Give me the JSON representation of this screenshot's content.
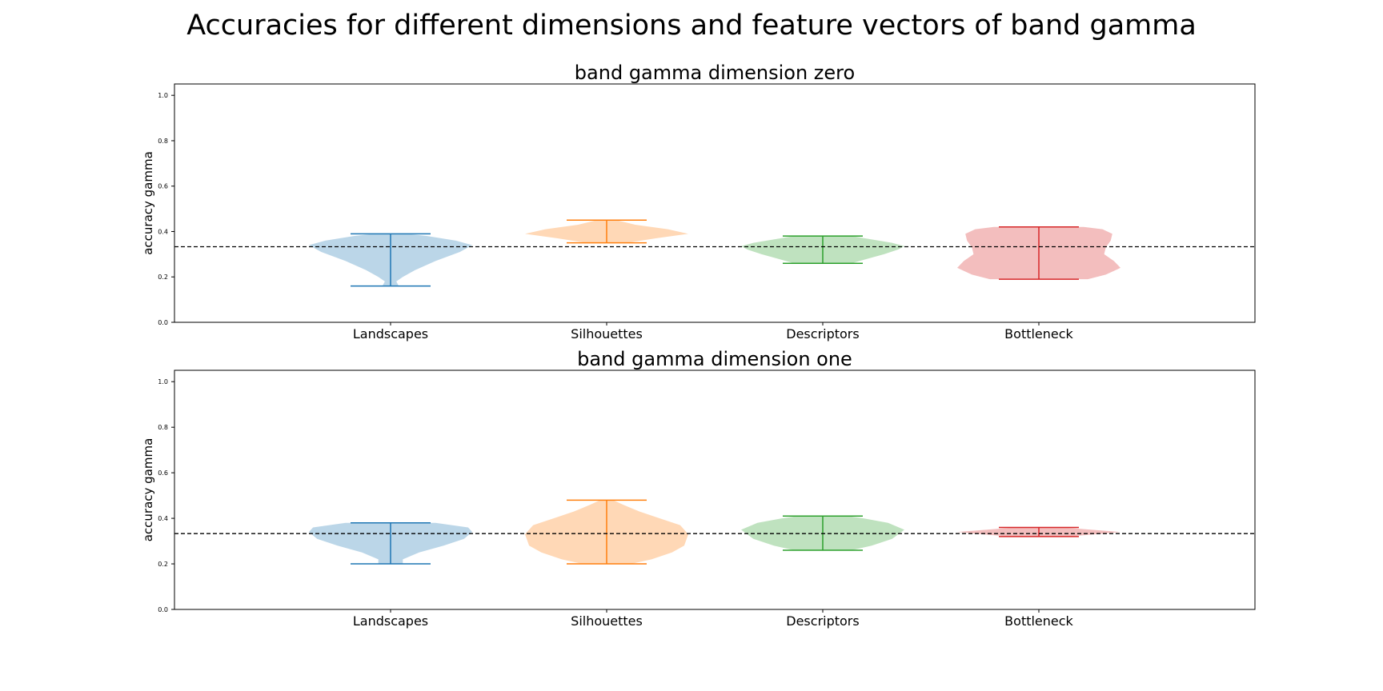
{
  "figure": {
    "title": "Accuracies for different dimensions and feature vectors of band gamma"
  },
  "chart_data": [
    {
      "type": "violin",
      "title": "band gamma dimension zero",
      "xlabel": "",
      "ylabel": "accuracy gamma",
      "ylim": [
        0.0,
        1.05
      ],
      "yticks": [
        "0.0",
        "0.2",
        "0.4",
        "0.6",
        "0.8",
        "1.0"
      ],
      "categories": [
        "Landscapes",
        "Silhouettes",
        "Descriptors",
        "Bottleneck"
      ],
      "reference_line": 0.333,
      "grid": false,
      "series": [
        {
          "category": "Landscapes",
          "color": "#1f77b4",
          "min": 0.16,
          "max": 0.39,
          "profile": [
            [
              0.16,
              0.1
            ],
            [
              0.18,
              0.07
            ],
            [
              0.2,
              0.15
            ],
            [
              0.23,
              0.3
            ],
            [
              0.27,
              0.55
            ],
            [
              0.31,
              0.85
            ],
            [
              0.34,
              1.0
            ],
            [
              0.36,
              0.8
            ],
            [
              0.38,
              0.45
            ],
            [
              0.39,
              0.2
            ]
          ]
        },
        {
          "category": "Silhouettes",
          "color": "#ff7f0e",
          "min": 0.35,
          "max": 0.45,
          "profile": [
            [
              0.35,
              0.25
            ],
            [
              0.37,
              0.6
            ],
            [
              0.39,
              1.0
            ],
            [
              0.41,
              0.75
            ],
            [
              0.43,
              0.35
            ],
            [
              0.45,
              0.12
            ]
          ]
        },
        {
          "category": "Descriptors",
          "color": "#2ca02c",
          "min": 0.26,
          "max": 0.38,
          "profile": [
            [
              0.26,
              0.35
            ],
            [
              0.28,
              0.55
            ],
            [
              0.3,
              0.75
            ],
            [
              0.32,
              0.92
            ],
            [
              0.335,
              1.0
            ],
            [
              0.35,
              0.85
            ],
            [
              0.365,
              0.6
            ],
            [
              0.38,
              0.35
            ]
          ]
        },
        {
          "category": "Bottleneck",
          "color": "#d62728",
          "min": 0.19,
          "max": 0.42,
          "profile": [
            [
              0.19,
              0.6
            ],
            [
              0.21,
              0.82
            ],
            [
              0.24,
              1.0
            ],
            [
              0.27,
              0.92
            ],
            [
              0.3,
              0.8
            ],
            [
              0.33,
              0.82
            ],
            [
              0.36,
              0.88
            ],
            [
              0.39,
              0.9
            ],
            [
              0.41,
              0.78
            ],
            [
              0.42,
              0.55
            ]
          ]
        }
      ]
    },
    {
      "type": "violin",
      "title": "band gamma dimension one",
      "xlabel": "",
      "ylabel": "accuracy gamma",
      "ylim": [
        0.0,
        1.05
      ],
      "yticks": [
        "0.0",
        "0.2",
        "0.4",
        "0.6",
        "0.8",
        "1.0"
      ],
      "categories": [
        "Landscapes",
        "Silhouettes",
        "Descriptors",
        "Bottleneck"
      ],
      "reference_line": 0.333,
      "grid": false,
      "series": [
        {
          "category": "Landscapes",
          "color": "#1f77b4",
          "min": 0.2,
          "max": 0.38,
          "profile": [
            [
              0.2,
              0.15
            ],
            [
              0.22,
              0.15
            ],
            [
              0.25,
              0.35
            ],
            [
              0.28,
              0.65
            ],
            [
              0.31,
              0.9
            ],
            [
              0.34,
              1.0
            ],
            [
              0.36,
              0.95
            ],
            [
              0.38,
              0.55
            ]
          ]
        },
        {
          "category": "Silhouettes",
          "color": "#ff7f0e",
          "min": 0.2,
          "max": 0.48,
          "profile": [
            [
              0.2,
              0.3
            ],
            [
              0.22,
              0.55
            ],
            [
              0.25,
              0.8
            ],
            [
              0.28,
              0.95
            ],
            [
              0.33,
              1.0
            ],
            [
              0.37,
              0.9
            ],
            [
              0.4,
              0.65
            ],
            [
              0.43,
              0.4
            ],
            [
              0.46,
              0.2
            ],
            [
              0.48,
              0.08
            ]
          ]
        },
        {
          "category": "Descriptors",
          "color": "#2ca02c",
          "min": 0.26,
          "max": 0.41,
          "profile": [
            [
              0.26,
              0.35
            ],
            [
              0.28,
              0.6
            ],
            [
              0.31,
              0.85
            ],
            [
              0.35,
              1.0
            ],
            [
              0.38,
              0.8
            ],
            [
              0.4,
              0.5
            ],
            [
              0.41,
              0.3
            ]
          ]
        },
        {
          "category": "Bottleneck",
          "color": "#d62728",
          "min": 0.32,
          "max": 0.36,
          "profile": [
            [
              0.32,
              0.35
            ],
            [
              0.33,
              0.7
            ],
            [
              0.34,
              1.0
            ],
            [
              0.35,
              0.65
            ],
            [
              0.36,
              0.3
            ]
          ]
        }
      ]
    }
  ]
}
